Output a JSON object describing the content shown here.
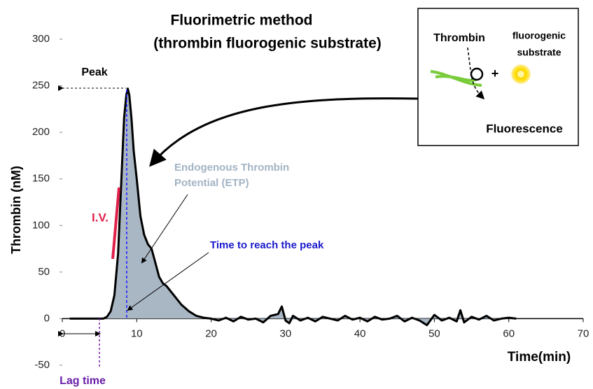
{
  "chart_data": {
    "type": "line",
    "title": "Fluorimetric method",
    "subtitle": "(thrombin fluorogenic substrate)",
    "y_label": "Thrombin  (nM)",
    "x_label": "Time(min)",
    "xlim": [
      0,
      70
    ],
    "xticks": [
      0,
      10,
      20,
      30,
      40,
      50,
      60,
      70
    ],
    "ylim": [
      -50,
      300
    ],
    "yticks": [
      -50,
      0,
      50,
      100,
      150,
      200,
      250,
      300
    ],
    "grid": false,
    "series": [
      {
        "color": "#000000",
        "fill": "#a9b6c4",
        "x": [
          1,
          2,
          3,
          4,
          5,
          5.5,
          6,
          6.5,
          7,
          7.5,
          8,
          8.3,
          8.6,
          8.8,
          9,
          9.3,
          9.6,
          10,
          10.5,
          11,
          11.5,
          12,
          12.5,
          13,
          13.5,
          14,
          15,
          16,
          17,
          18,
          19,
          20,
          21,
          22,
          23,
          24,
          25,
          26,
          27,
          28,
          29,
          29.5,
          30,
          30.5,
          31,
          32,
          33,
          34,
          35,
          36,
          37,
          38,
          39,
          40,
          41,
          42,
          43,
          44,
          45,
          46,
          47,
          48,
          49,
          50,
          51,
          52,
          53,
          53.5,
          54,
          55,
          56,
          57,
          58,
          59,
          60,
          61
        ],
        "values": [
          0,
          0,
          0,
          0,
          0,
          0,
          2,
          8,
          25,
          70,
          160,
          215,
          240,
          247,
          240,
          215,
          180,
          150,
          110,
          90,
          80,
          75,
          60,
          45,
          38,
          35,
          25,
          15,
          8,
          3,
          1,
          0,
          -2,
          1,
          -3,
          2,
          -1,
          0,
          -4,
          3,
          5,
          13,
          -2,
          -5,
          3,
          -2,
          1,
          -3,
          2,
          0,
          -2,
          3,
          -1,
          1,
          -3,
          2,
          -1,
          0,
          3,
          -3,
          1,
          -2,
          -7,
          4,
          -2,
          1,
          -3,
          9,
          -4,
          2,
          -1,
          3,
          -2,
          0,
          1,
          0
        ]
      }
    ],
    "annotations": {
      "peak": "Peak",
      "iv": "I.V.",
      "etp": [
        "Endogenous Thrombin",
        "Potential (ETP)"
      ],
      "ttp": "Time to reach the peak",
      "lag": "Lag time",
      "inset_thrombin": "Thrombin",
      "inset_substrate": [
        "fluorogenic",
        "substrate"
      ],
      "inset_plus": "+",
      "inset_result": "Fluorescence"
    }
  }
}
